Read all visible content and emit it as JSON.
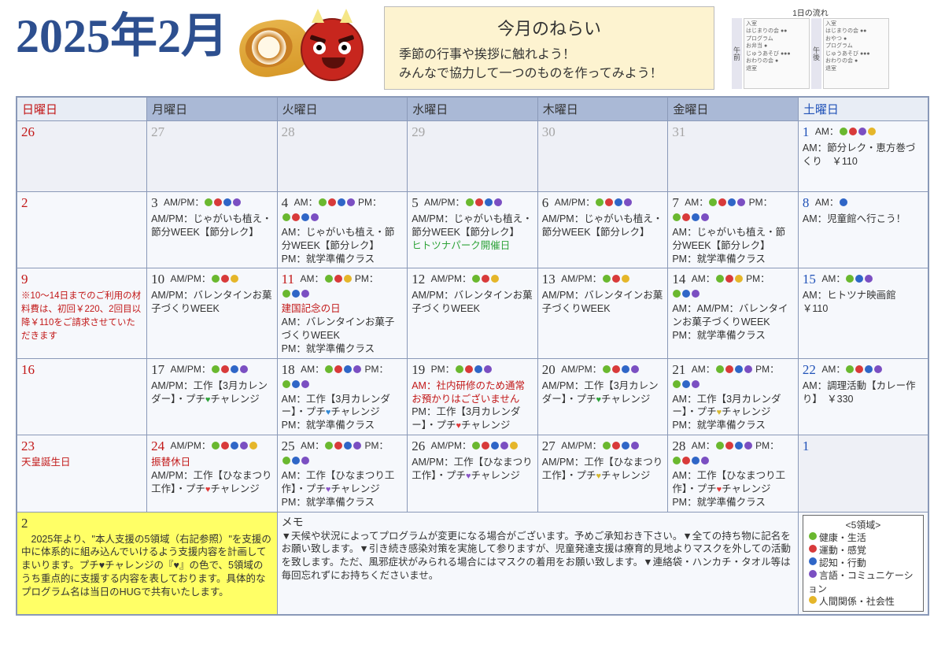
{
  "title": "2025年2月",
  "goals": {
    "heading": "今月のねらい",
    "line1": "季節の行事や挨拶に触れよう！",
    "line2": "みんなで協力して一つのものを作ってみよう！"
  },
  "flow": {
    "heading": "1日の流れ",
    "am_label": "午前",
    "pm_label": "午後",
    "am_items": "入室\nはじまりの会 ●●\nプログラム\nお弁当 ●\nじゅうあそび ●●●\nおわりの会 ●\n退室",
    "pm_items": "入室\nはじまりの会 ●●\nおやつ ●\nプログラム\nじゅうあそび ●●●\nおわりの会 ●\n退室"
  },
  "days": {
    "sun": "日曜日",
    "mon": "月曜日",
    "tue": "火曜日",
    "wed": "水曜日",
    "thu": "木曜日",
    "fri": "金曜日",
    "sat": "土曜日"
  },
  "colors": {
    "green": "#6ab82f",
    "red": "#d83a3a",
    "blue": "#2f66c7",
    "purple": "#7b4fc2",
    "yellow": "#e5b62a"
  },
  "legend": {
    "title": "<5領域>",
    "items": [
      {
        "c": "green",
        "t": "健康・生活"
      },
      {
        "c": "red",
        "t": "運動・感覚"
      },
      {
        "c": "blue",
        "t": "認知・行動"
      },
      {
        "c": "purple",
        "t": "言語・コミュニケーション"
      },
      {
        "c": "yellow",
        "t": "人間関係・社会性"
      }
    ]
  },
  "cells": {
    "d1": {
      "n": "1",
      "ampm": "AM：",
      "dots": [
        "green",
        "red",
        "purple",
        "yellow"
      ],
      "t": "AM：節分レク・恵方巻づくり　￥110"
    },
    "d2": {
      "n": "2"
    },
    "d3": {
      "n": "3",
      "ampm": "AM/PM：",
      "dots": [
        "green",
        "red",
        "blue",
        "purple"
      ],
      "t": "AM/PM：じゃがいも植え・節分WEEK【節分レク】"
    },
    "d4": {
      "n": "4",
      "ampm": "AM：",
      "dots": [
        "green",
        "red",
        "blue",
        "purple"
      ],
      "ampm2": " PM：",
      "dots2": [
        "green",
        "red",
        "blue",
        "purple"
      ],
      "t": "AM：じゃがいも植え・節分WEEK【節分レク】\nPM：就学準備クラス"
    },
    "d5": {
      "n": "5",
      "ampm": "AM/PM：",
      "dots": [
        "green",
        "red",
        "blue",
        "purple"
      ],
      "t": "AM/PM：じゃがいも植え・節分WEEK【節分レク】",
      "extra_green": "ヒトツナパーク開催日"
    },
    "d6": {
      "n": "6",
      "ampm": "AM/PM：",
      "dots": [
        "green",
        "red",
        "blue",
        "purple"
      ],
      "t": "AM/PM：じゃがいも植え・節分WEEK【節分レク】"
    },
    "d7": {
      "n": "7",
      "ampm": "AM：",
      "dots": [
        "green",
        "red",
        "blue",
        "purple"
      ],
      "ampm2": " PM：",
      "dots2": [
        "green",
        "red",
        "blue",
        "purple"
      ],
      "t": "AM：じゃがいも植え・節分WEEK【節分レク】\nPM：就学準備クラス"
    },
    "d8": {
      "n": "8",
      "ampm": "AM：",
      "dots": [
        "blue"
      ],
      "t": "AM：児童館へ行こう！"
    },
    "d9": {
      "n": "9",
      "note": "※10～14日までのご利用の材料費は、初回￥220、2回目以降￥110をご請求させていただきます"
    },
    "d10": {
      "n": "10",
      "ampm": "AM/PM：",
      "dots": [
        "green",
        "red",
        "yellow"
      ],
      "t": "AM/PM：バレンタインお菓子づくりWEEK"
    },
    "d11": {
      "n": "11",
      "ampm": "AM：",
      "dots": [
        "green",
        "red",
        "yellow"
      ],
      "ampm2": " PM：",
      "dots2": [
        "green",
        "blue",
        "purple"
      ],
      "label": "建国記念の日",
      "t": "AM：バレンタインお菓子づくりWEEK\nPM：就学準備クラス"
    },
    "d12": {
      "n": "12",
      "ampm": "AM/PM：",
      "dots": [
        "green",
        "red",
        "yellow"
      ],
      "t": "AM/PM：バレンタインお菓子づくりWEEK"
    },
    "d13": {
      "n": "13",
      "ampm": "AM/PM：",
      "dots": [
        "green",
        "red",
        "yellow"
      ],
      "t": "AM/PM：バレンタインお菓子づくりWEEK"
    },
    "d14": {
      "n": "14",
      "ampm": "AM：",
      "dots": [
        "green",
        "red",
        "yellow"
      ],
      "ampm2": " PM：",
      "dots2": [
        "green",
        "blue",
        "purple"
      ],
      "t": "AM：AM/PM：バレンタインお菓子づくりWEEK\nPM：就学準備クラス"
    },
    "d15": {
      "n": "15",
      "ampm": "AM：",
      "dots": [
        "green",
        "blue",
        "purple"
      ],
      "t": "AM：ヒトツナ映画館　￥110"
    },
    "d16": {
      "n": "16"
    },
    "d17": {
      "n": "17",
      "ampm": "AM/PM：",
      "dots": [
        "green",
        "red",
        "blue",
        "purple"
      ],
      "t": "AM/PM：工作【3月カレンダー】・プチ",
      "heart": "green",
      "t2": "チャレンジ"
    },
    "d18": {
      "n": "18",
      "ampm": "AM：",
      "dots": [
        "green",
        "red",
        "blue",
        "purple"
      ],
      "ampm2": " PM：",
      "dots2": [
        "green",
        "blue",
        "purple"
      ],
      "t": "AM：工作【3月カレンダー】・プチ",
      "heart": "blue",
      "t2": "チャレンジ\nPM：就学準備クラス"
    },
    "d19": {
      "n": "19",
      "ampm": "PM：",
      "dots": [
        "green",
        "red",
        "blue",
        "purple"
      ],
      "extra_red": "AM：社内研修のため通常お預かりはございません",
      "t": "PM：工作【3月カレンダー】・プチ",
      "heart": "red",
      "t2": "チャレンジ"
    },
    "d20": {
      "n": "20",
      "ampm": "AM/PM：",
      "dots": [
        "green",
        "red",
        "blue",
        "purple"
      ],
      "t": "AM/PM：工作【3月カレンダー】・プチ",
      "heart": "green",
      "t2": "チャレンジ"
    },
    "d21": {
      "n": "21",
      "ampm": "AM：",
      "dots": [
        "green",
        "red",
        "blue",
        "purple"
      ],
      "ampm2": " PM：",
      "dots2": [
        "green",
        "blue",
        "purple"
      ],
      "t": "AM：工作【3月カレンダー】・プチ",
      "heart": "yellow",
      "t2": "チャレンジ\nPM：就学準備クラス"
    },
    "d22": {
      "n": "22",
      "ampm": "AM：",
      "dots": [
        "green",
        "red",
        "blue",
        "purple"
      ],
      "t": "AM：調理活動【カレー作り】　￥330"
    },
    "d23": {
      "n": "23",
      "label": "天皇誕生日"
    },
    "d24": {
      "n": "24",
      "ampm": "AM/PM：",
      "dots": [
        "green",
        "red",
        "blue",
        "purple",
        "yellow"
      ],
      "label": "振替休日",
      "t": "AM/PM：工作【ひなまつり工作】・プチ",
      "heart": "red",
      "t2": "チャレンジ"
    },
    "d25": {
      "n": "25",
      "ampm": "AM：",
      "dots": [
        "green",
        "red",
        "blue",
        "purple"
      ],
      "ampm2": " PM：",
      "dots2": [
        "green",
        "blue",
        "purple"
      ],
      "t": "AM：工作【ひなまつり工作】・プチ",
      "heart": "purple",
      "t2": "チャレンジ\nPM：就学準備クラス"
    },
    "d26": {
      "n": "26",
      "ampm": "AM/PM：",
      "dots": [
        "green",
        "red",
        "blue",
        "purple",
        "yellow"
      ],
      "t": "AM/PM：工作【ひなまつり工作】・プチ",
      "heart": "purple",
      "t2": "チャレンジ"
    },
    "d27": {
      "n": "27",
      "ampm": "AM/PM：",
      "dots": [
        "green",
        "red",
        "blue",
        "purple"
      ],
      "t": "AM/PM：工作【ひなまつり工作】・プチ",
      "heart": "yellow",
      "t2": "チャレンジ"
    },
    "d28": {
      "n": "28",
      "ampm": "AM：",
      "dots": [
        "green",
        "red",
        "blue",
        "purple"
      ],
      "ampm2": " PM：",
      "dots2": [
        "green",
        "red",
        "blue",
        "purple"
      ],
      "t": "AM：工作【ひなまつり工作】・プチ",
      "heart": "red",
      "t2": "チャレンジ\nPM：就学準備クラス"
    }
  },
  "footer": {
    "left_num": "2",
    "left": "　2025年より、\"本人支援の5領域（右記参照）\"を支援の中に体系的に組み込んでいけるよう支援内容を計画してまいります。プチ♥チャレンジの『♥』の色で、5領域のうち重点的に支援する内容を表しております。具体的なプログラム名は当日のHUGで共有いたします。",
    "mid_title": "メモ",
    "mid": "▼天候や状況によってプログラムが変更になる場合がございます。予めご承知おき下さい。▼全ての持ち物に記名をお願い致します。▼引き続き感染対策を実施して参りますが、児童発達支援は療育的見地よりマスクを外しての活動を致します。ただ、風邪症状がみられる場合にはマスクの着用をお願い致します。▼連絡袋・ハンカチ・タオル等は毎回忘れずにお持ちくださいませ。"
  }
}
